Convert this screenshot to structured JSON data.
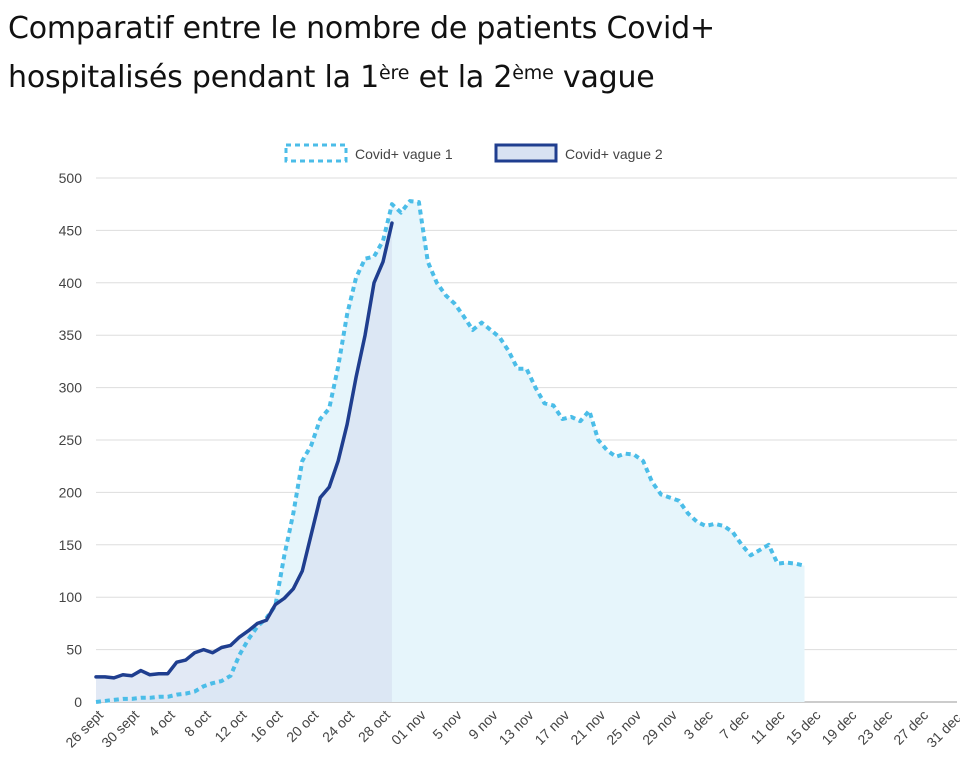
{
  "title": {
    "line1": "Comparatif entre le nombre de patients Covid+",
    "line2_a": "hospitalisés pendant la 1",
    "line2_sup1": "ère",
    "line2_b": " et la 2",
    "line2_sup2": "ème",
    "line2_c": " vague"
  },
  "colors": {
    "wave1": "#4bbde8",
    "wave1_fill": "#e6f5fb",
    "wave2": "#1f3e8f",
    "wave2_fill": "#d8e2f2",
    "grid": "#dddddd"
  },
  "chart_data": {
    "type": "area",
    "title": "Comparatif entre le nombre de patients Covid+ hospitalisés pendant la 1ère et la 2ème vague",
    "xlabel": "",
    "ylabel": "",
    "ylim": [
      0,
      500
    ],
    "yticks": [
      0,
      50,
      100,
      150,
      200,
      250,
      300,
      350,
      400,
      450,
      500
    ],
    "x_count": 97,
    "x_tick_every": 4,
    "x_tick_labels": [
      "26 sept",
      "30 sept",
      "4 oct",
      "8 oct",
      "12 oct",
      "16 oct",
      "20 oct",
      "24 oct",
      "28 oct",
      "01 nov",
      "5 nov",
      "9 nov",
      "13 nov",
      "17 nov",
      "21 nov",
      "25 nov",
      "29 nov",
      "3 dec",
      "7 dec",
      "11 dec",
      "15 dec",
      "19 dec",
      "23 dec",
      "27 dec",
      "31 dec."
    ],
    "legend_position": "top-center",
    "series": [
      {
        "name": "Covid+ vague 1",
        "style": "dotted",
        "values": [
          0,
          1,
          2,
          3,
          3,
          4,
          4,
          5,
          5,
          7,
          8,
          10,
          15,
          18,
          20,
          25,
          45,
          60,
          72,
          80,
          92,
          140,
          180,
          230,
          245,
          270,
          280,
          320,
          370,
          405,
          423,
          425,
          440,
          475,
          467,
          478,
          477,
          420,
          400,
          388,
          380,
          368,
          355,
          362,
          355,
          348,
          335,
          318,
          318,
          300,
          285,
          283,
          270,
          272,
          268,
          278,
          250,
          240,
          234,
          237,
          236,
          230,
          210,
          198,
          195,
          192,
          180,
          172,
          168,
          170,
          168,
          162,
          150,
          140,
          145,
          150,
          132,
          133,
          132,
          130
        ]
      },
      {
        "name": "Covid+ vague 2",
        "style": "solid",
        "values": [
          24,
          24,
          23,
          26,
          25,
          30,
          26,
          27,
          27,
          38,
          40,
          47,
          50,
          47,
          52,
          54,
          62,
          68,
          75,
          78,
          93,
          99,
          108,
          125,
          160,
          195,
          205,
          230,
          265,
          310,
          350,
          400,
          420,
          457
        ]
      }
    ]
  }
}
